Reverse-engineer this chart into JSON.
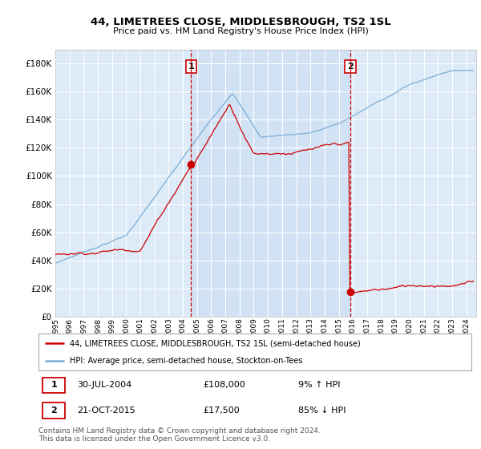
{
  "title": "44, LIMETREES CLOSE, MIDDLESBROUGH, TS2 1SL",
  "subtitle": "Price paid vs. HM Land Registry's House Price Index (HPI)",
  "ytick_values": [
    0,
    20000,
    40000,
    60000,
    80000,
    100000,
    120000,
    140000,
    160000,
    180000
  ],
  "ylim": [
    0,
    190000
  ],
  "xlim_start": 1995.0,
  "xlim_end": 2024.7,
  "background_color": "#ddeaf7",
  "highlight_color": "#cce0f5",
  "grid_color": "#ffffff",
  "sale1_date": 2004.58,
  "sale1_price": 108000,
  "sale1_label": "1",
  "sale2_date": 2015.81,
  "sale2_price": 17500,
  "sale2_label": "2",
  "red_line_color": "#cc0000",
  "blue_line_color": "#7aaed6",
  "marker_color": "#cc0000",
  "vline_color": "#cc0000",
  "legend_label_red": "44, LIMETREES CLOSE, MIDDLESBROUGH, TS2 1SL (semi-detached house)",
  "legend_label_blue": "HPI: Average price, semi-detached house, Stockton-on-Tees",
  "footnote1": "Contains HM Land Registry data © Crown copyright and database right 2024.",
  "footnote2": "This data is licensed under the Open Government Licence v3.0.",
  "xtick_years": [
    1995,
    1996,
    1997,
    1998,
    1999,
    2000,
    2001,
    2002,
    2003,
    2004,
    2005,
    2006,
    2007,
    2008,
    2009,
    2010,
    2011,
    2012,
    2013,
    2014,
    2015,
    2016,
    2017,
    2018,
    2019,
    2020,
    2021,
    2022,
    2023,
    2024
  ]
}
